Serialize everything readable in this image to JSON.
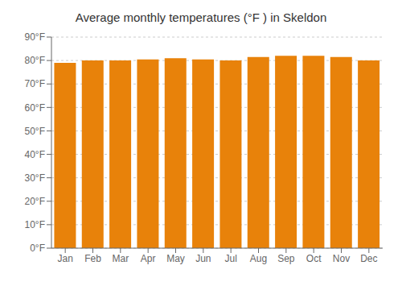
{
  "chart_data": {
    "type": "bar",
    "title": "Average monthly temperatures (°F ) in Skeldon",
    "categories": [
      "Jan",
      "Feb",
      "Mar",
      "Apr",
      "May",
      "Jun",
      "Jul",
      "Aug",
      "Sep",
      "Oct",
      "Nov",
      "Dec"
    ],
    "values": [
      79,
      80,
      80,
      80.5,
      81,
      80.5,
      80,
      81.5,
      82,
      82,
      81.5,
      80
    ],
    "color": "#E8820A",
    "ylim": [
      0,
      90
    ],
    "yticks": [
      {
        "value": 0,
        "label": "0°F"
      },
      {
        "value": 10,
        "label": "10°F"
      },
      {
        "value": 20,
        "label": "20°F"
      },
      {
        "value": 30,
        "label": "30°F"
      },
      {
        "value": 40,
        "label": "40°F"
      },
      {
        "value": 50,
        "label": "50°F"
      },
      {
        "value": 60,
        "label": "60°F"
      },
      {
        "value": 70,
        "label": "70°F"
      },
      {
        "value": 80,
        "label": "80°F"
      },
      {
        "value": 90,
        "label": "90°F"
      }
    ],
    "grid": true
  }
}
